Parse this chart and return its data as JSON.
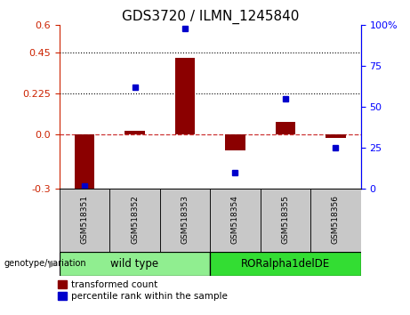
{
  "title": "GDS3720 / ILMN_1245840",
  "samples": [
    "GSM518351",
    "GSM518352",
    "GSM518353",
    "GSM518354",
    "GSM518355",
    "GSM518356"
  ],
  "red_values": [
    -0.31,
    0.02,
    0.42,
    -0.09,
    0.07,
    -0.02
  ],
  "blue_values": [
    2,
    62,
    98,
    10,
    55,
    25
  ],
  "ylim_left": [
    -0.3,
    0.6
  ],
  "ylim_right": [
    0,
    100
  ],
  "yticks_left": [
    -0.3,
    0.0,
    0.225,
    0.45,
    0.6
  ],
  "yticks_right": [
    0,
    25,
    50,
    75,
    100
  ],
  "hlines": [
    0.225,
    0.45
  ],
  "groups": [
    {
      "label": "wild type",
      "indices": [
        0,
        1,
        2
      ],
      "color": "#90EE90"
    },
    {
      "label": "RORalpha1delDE",
      "indices": [
        3,
        4,
        5
      ],
      "color": "#33DD33"
    }
  ],
  "bar_color": "#8B0000",
  "dot_color": "#0000CC",
  "zero_line_color": "#CC3333",
  "legend_red": "transformed count",
  "legend_blue": "percentile rank within the sample",
  "group_label": "genotype/variation"
}
